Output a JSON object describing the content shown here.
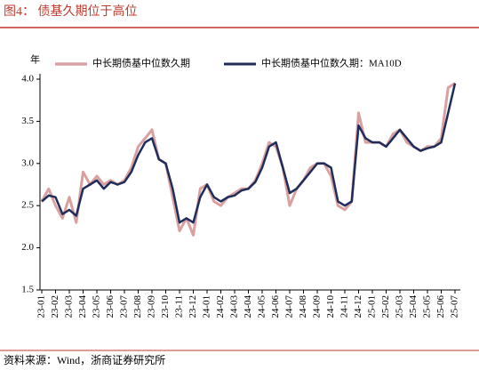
{
  "title": "图4：  债基久期位于高位",
  "source": "资料来源：Wind，浙商证券研究所",
  "chart_data": {
    "type": "line",
    "y_unit": "年",
    "categories": [
      "23-01",
      null,
      "23-02",
      null,
      "23-03",
      null,
      "23-04",
      null,
      "23-05",
      null,
      "23-06",
      null,
      "23-07",
      null,
      "23-08",
      null,
      "23-09",
      null,
      "23-10",
      null,
      "23-11",
      null,
      "23-12",
      null,
      "24-01",
      null,
      "24-02",
      null,
      "24-03",
      null,
      "24-04",
      null,
      "24-05",
      null,
      "24-06",
      null,
      "24-07",
      null,
      "24-08",
      null,
      "24-09",
      null,
      "24-10",
      null,
      "24-11",
      null,
      "24-12",
      null,
      "25-01",
      null,
      "25-02",
      null,
      "25-03",
      null,
      "25-04",
      null,
      "25-05",
      null,
      "25-06",
      null,
      "25-07"
    ],
    "series": [
      {
        "name": "中长期债基中位数久期",
        "color": "#d9a0a0",
        "width": 3,
        "values": [
          2.55,
          2.7,
          2.5,
          2.35,
          2.6,
          2.3,
          2.9,
          2.75,
          2.85,
          2.75,
          2.8,
          2.75,
          2.8,
          2.95,
          3.2,
          3.3,
          3.4,
          3.05,
          3.0,
          2.6,
          2.2,
          2.35,
          2.15,
          2.7,
          2.75,
          2.55,
          2.5,
          2.6,
          2.65,
          2.7,
          2.7,
          2.8,
          3.0,
          3.25,
          3.2,
          2.95,
          2.5,
          2.7,
          2.8,
          2.95,
          3.0,
          3.0,
          2.85,
          2.5,
          2.45,
          2.55,
          3.6,
          3.25,
          3.25,
          3.25,
          3.2,
          3.35,
          3.4,
          3.25,
          3.2,
          3.15,
          3.2,
          3.2,
          3.3,
          3.9,
          3.95
        ]
      },
      {
        "name": "中长期债基中位数久期：MA10D",
        "color": "#1f2d5c",
        "width": 2.5,
        "values": [
          2.55,
          2.62,
          2.6,
          2.4,
          2.45,
          2.38,
          2.7,
          2.75,
          2.8,
          2.7,
          2.78,
          2.75,
          2.78,
          2.9,
          3.1,
          3.25,
          3.3,
          3.05,
          3.0,
          2.7,
          2.3,
          2.35,
          2.3,
          2.6,
          2.75,
          2.6,
          2.55,
          2.6,
          2.62,
          2.68,
          2.7,
          2.78,
          2.95,
          3.2,
          3.25,
          2.95,
          2.65,
          2.7,
          2.8,
          2.9,
          3.0,
          3.0,
          2.95,
          2.55,
          2.5,
          2.55,
          3.45,
          3.3,
          3.25,
          3.25,
          3.2,
          3.3,
          3.4,
          3.3,
          3.2,
          3.15,
          3.18,
          3.2,
          3.25,
          3.6,
          3.95
        ]
      }
    ],
    "ylim": [
      1.5,
      4.0
    ],
    "yticks": [
      1.5,
      {
        "value": 2,
        "label": "2.0"
      },
      2.5,
      {
        "value": 3,
        "label": "3.0"
      },
      3.5,
      {
        "value": 4,
        "label": "4.0"
      }
    ]
  }
}
